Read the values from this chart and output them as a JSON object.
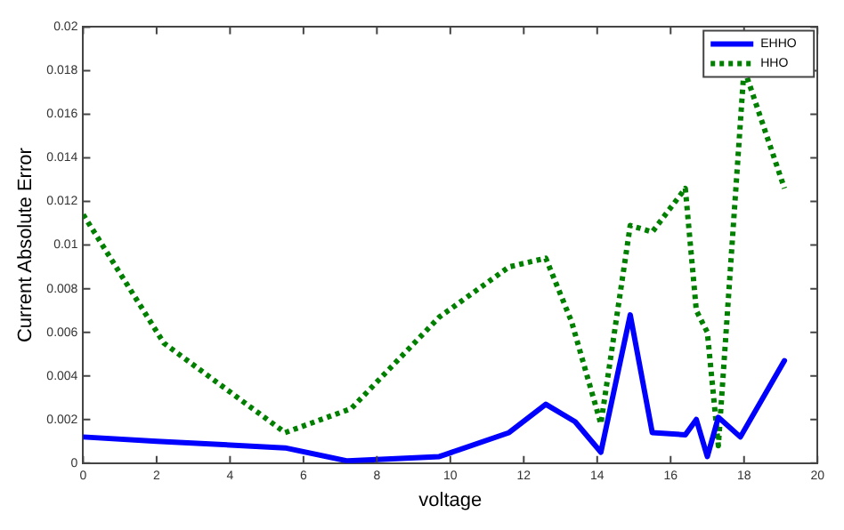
{
  "chart_data": {
    "type": "line",
    "xlabel": "voltage",
    "ylabel": "Current Absolute Error",
    "xlim": [
      0,
      20
    ],
    "xticks": [
      0,
      2,
      4,
      6,
      8,
      10,
      12,
      14,
      16,
      18,
      20
    ],
    "ylim": [
      0,
      0.02
    ],
    "yticks": [
      0,
      0.002,
      0.004,
      0.006,
      0.008,
      0.01,
      0.012,
      0.014,
      0.016,
      0.018,
      0.02
    ],
    "grid": false,
    "legend": "top right",
    "marker": "none",
    "series": [
      {
        "name": "EHHO",
        "color": "#0000ff",
        "line_style": "solid",
        "x": [
          0,
          2,
          5.5,
          7.2,
          9.7,
          11.6,
          12.6,
          13.4,
          14.1,
          14.9,
          15.5,
          16.4,
          16.7,
          17.0,
          17.3,
          17.9,
          19.1
        ],
        "values": [
          0.0012,
          0.001,
          0.0007,
          0.0001,
          0.0003,
          0.0014,
          0.0027,
          0.0019,
          0.0005,
          0.0068,
          0.0014,
          0.0013,
          0.002,
          0.0003,
          0.0021,
          0.0012,
          0.0047
        ]
      },
      {
        "name": "HHO",
        "color": "#007f00",
        "line_style": "dotted",
        "x": [
          0,
          2.2,
          5.5,
          7.3,
          9.7,
          11.6,
          12.6,
          13.3,
          14.1,
          14.9,
          15.5,
          16.4,
          16.7,
          17.0,
          17.3,
          18.0,
          19.1
        ],
        "values": [
          0.0114,
          0.0055,
          0.0014,
          0.0025,
          0.0067,
          0.009,
          0.0094,
          0.0065,
          0.0018,
          0.0109,
          0.0106,
          0.0126,
          0.007,
          0.006,
          0.0008,
          0.0181,
          0.0126
        ]
      }
    ]
  }
}
